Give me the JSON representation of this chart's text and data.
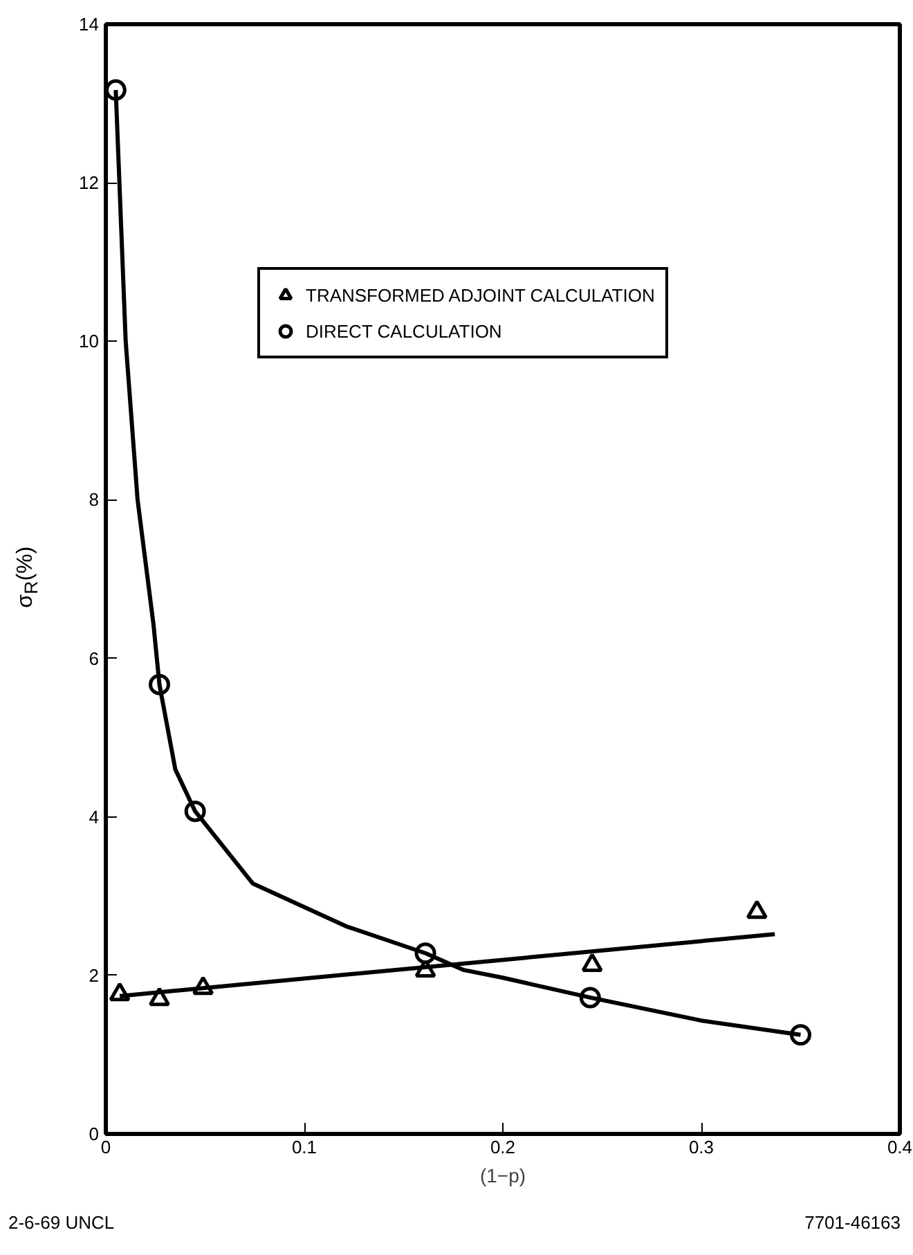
{
  "chart_data": {
    "type": "scatter",
    "xlabel": "(1−p)",
    "ylabel": "σ$_{R}$(%)",
    "xlim": [
      0,
      0.4
    ],
    "ylim": [
      0,
      14
    ],
    "xticks": [
      0,
      0.1,
      0.2,
      0.3,
      0.4
    ],
    "yticks": [
      0,
      2,
      4,
      6,
      8,
      10,
      12,
      14
    ],
    "grid": false,
    "legend": "top right",
    "series": [
      {
        "name": "TRANSFORMED ADJOINT CALCULATION",
        "type": "scatter",
        "marker": "triangle",
        "color": "#000000",
        "x": [
          0.007,
          0.027,
          0.049,
          0.161,
          0.245,
          0.328
        ],
        "values": [
          1.76,
          1.7,
          1.84,
          2.06,
          2.13,
          2.8
        ]
      },
      {
        "name": "DIRECT CALCULATION",
        "type": "scatter",
        "marker": "circle",
        "color": "#000000",
        "x": [
          0.005,
          0.027,
          0.045,
          0.161,
          0.244,
          0.35
        ],
        "values": [
          13.17,
          5.67,
          4.07,
          2.28,
          1.72,
          1.25
        ]
      },
      {
        "type": "line",
        "marker": "none",
        "color": "#000000",
        "x": [
          0.007,
          0.337
        ],
        "values": [
          1.74,
          2.52
        ]
      },
      {
        "type": "line",
        "marker": "none",
        "color": "#000000",
        "x": [
          0.005,
          0.01,
          0.016,
          0.024,
          0.027,
          0.035,
          0.045,
          0.074,
          0.121,
          0.161,
          0.18,
          0.2,
          0.244,
          0.3,
          0.35
        ],
        "values": [
          13.17,
          10,
          8,
          6.43,
          5.67,
          4.6,
          4.07,
          3.16,
          2.62,
          2.28,
          2.07,
          1.97,
          1.72,
          1.43,
          1.25
        ]
      }
    ],
    "annotations": [
      "2-6-69 UNCL",
      "7701-46163"
    ]
  }
}
